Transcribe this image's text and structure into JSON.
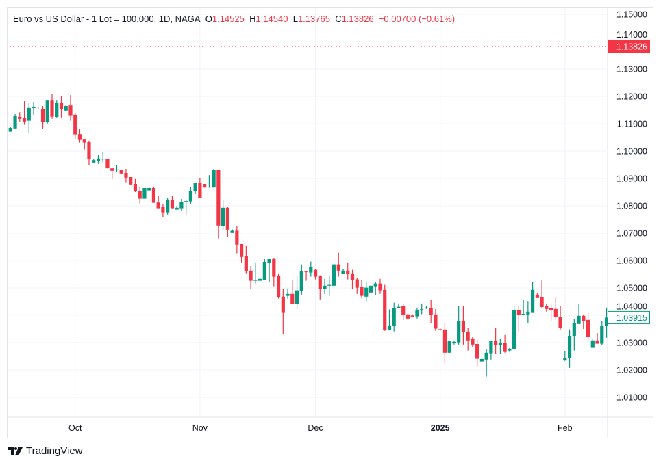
{
  "header": {
    "symbol_title": "Euro vs US Dollar - 1 Lot = 100,000, 1D, NAGA",
    "open_label": "O",
    "open": "1.14525",
    "high_label": "H",
    "high": "1.14540",
    "low_label": "L",
    "low": "1.13765",
    "close_label": "C",
    "close": "1.13826",
    "change": "−0.00700 (−0.61%)"
  },
  "price_markers": {
    "current_price": "1.13826",
    "current_price_value": 1.13826,
    "current_price_color": "#f23645",
    "last_bar_price": "1.03915",
    "last_bar_price_value": 1.03915,
    "last_bar_color": "#089981"
  },
  "brand": {
    "name": "TradingView"
  },
  "colors": {
    "up": "#089981",
    "down": "#f23645",
    "grid": "#f0f3fa",
    "text": "#131722"
  },
  "chart_data": {
    "type": "candlestick",
    "title": "Euro vs US Dollar - 1 Lot = 100,000, 1D, NAGA",
    "ylim": [
      1.0035,
      1.1525
    ],
    "grid": true,
    "y_ticks": [
      "1.15000",
      "1.14000",
      "1.13000",
      "1.12000",
      "1.11000",
      "1.10000",
      "1.09000",
      "1.08000",
      "1.07000",
      "1.06000",
      "1.05000",
      "1.04000",
      "1.03000",
      "1.02000",
      "1.01000"
    ],
    "x_ticks": [
      {
        "label": "Oct",
        "index": 14,
        "bold": false
      },
      {
        "label": "Nov",
        "index": 41,
        "bold": false
      },
      {
        "label": "Dec",
        "index": 66,
        "bold": false
      },
      {
        "label": "2025",
        "index": 93,
        "bold": true
      },
      {
        "label": "Feb",
        "index": 120,
        "bold": false
      }
    ],
    "ohlc_fields": [
      "open",
      "high",
      "low",
      "close"
    ],
    "ohlc": [
      [
        1.1071,
        1.1088,
        1.1071,
        1.1085
      ],
      [
        1.1083,
        1.1135,
        1.1083,
        1.1128
      ],
      [
        1.1125,
        1.1142,
        1.1108,
        1.1118
      ],
      [
        1.112,
        1.1185,
        1.1096,
        1.1108
      ],
      [
        1.1111,
        1.1175,
        1.1066,
        1.1158
      ],
      [
        1.1158,
        1.118,
        1.1133,
        1.116
      ],
      [
        1.1153,
        1.1163,
        1.1153,
        1.1155
      ],
      [
        1.1155,
        1.1165,
        1.108,
        1.1106
      ],
      [
        1.1105,
        1.1187,
        1.1101,
        1.1187
      ],
      [
        1.1187,
        1.121,
        1.1118,
        1.1126
      ],
      [
        1.1125,
        1.1187,
        1.1123,
        1.1175
      ],
      [
        1.1175,
        1.12,
        1.1123,
        1.1153
      ],
      [
        1.1148,
        1.117,
        1.1148,
        1.1165
      ],
      [
        1.1167,
        1.1205,
        1.1111,
        1.1131
      ],
      [
        1.1133,
        1.114,
        1.1043,
        1.1061
      ],
      [
        1.1062,
        1.108,
        1.1031,
        1.1041
      ],
      [
        1.1042,
        1.1045,
        1.1006,
        1.1031
      ],
      [
        1.1033,
        1.1038,
        1.0948,
        1.0971
      ],
      [
        1.0958,
        1.097,
        1.0958,
        1.0967
      ],
      [
        1.0965,
        1.0985,
        1.0953,
        1.0973
      ],
      [
        1.0971,
        1.0995,
        1.0958,
        1.0972
      ],
      [
        1.0972,
        1.0972,
        1.0936,
        1.0938
      ],
      [
        1.0937,
        1.0937,
        1.0898,
        1.0928
      ],
      [
        1.093,
        1.095,
        1.0923,
        1.0933
      ],
      [
        1.093,
        1.093,
        1.0918,
        1.0918
      ],
      [
        1.092,
        1.0935,
        1.0886,
        1.0903
      ],
      [
        1.0905,
        1.0905,
        1.0878,
        1.0878
      ],
      [
        1.088,
        1.0898,
        1.085,
        1.0853
      ],
      [
        1.0855,
        1.087,
        1.0808,
        1.0826
      ],
      [
        1.0826,
        1.0865,
        1.0826,
        1.0865
      ],
      [
        1.0856,
        1.0868,
        1.0856,
        1.0865
      ],
      [
        1.0865,
        1.0868,
        1.0811,
        1.0811
      ],
      [
        1.0812,
        1.0835,
        1.0791,
        1.0791
      ],
      [
        1.0795,
        1.0805,
        1.0758,
        1.0776
      ],
      [
        1.0776,
        1.0828,
        1.0768,
        1.082
      ],
      [
        1.0822,
        1.0837,
        1.0791,
        1.0791
      ],
      [
        1.0786,
        1.08,
        1.0786,
        1.0793
      ],
      [
        1.0791,
        1.0825,
        1.0781,
        1.0815
      ],
      [
        1.0816,
        1.0823,
        1.0766,
        1.0817
      ],
      [
        1.0816,
        1.0868,
        1.0806,
        1.0855
      ],
      [
        1.0853,
        1.0885,
        1.0843,
        1.0883
      ],
      [
        1.0883,
        1.0902,
        1.0828,
        1.0828
      ],
      [
        1.088,
        1.088,
        1.0867,
        1.0867
      ],
      [
        1.0867,
        1.0912,
        1.0867,
        1.087
      ],
      [
        1.0867,
        1.0935,
        1.0867,
        1.093
      ],
      [
        1.093,
        1.093,
        1.0681,
        1.0728
      ],
      [
        1.0726,
        1.0823,
        1.0711,
        1.0793
      ],
      [
        1.0793,
        1.0795,
        1.0686,
        1.0713
      ],
      [
        1.0703,
        1.0714,
        1.0703,
        1.0709
      ],
      [
        1.0709,
        1.0725,
        1.0626,
        1.0658
      ],
      [
        1.066,
        1.066,
        1.0593,
        1.0613
      ],
      [
        1.0615,
        1.0653,
        1.0553,
        1.0561
      ],
      [
        1.0563,
        1.058,
        1.0496,
        1.0526
      ],
      [
        1.0526,
        1.059,
        1.0516,
        1.053
      ],
      [
        1.0526,
        1.0536,
        1.0526,
        1.0533
      ],
      [
        1.053,
        1.0605,
        1.0528,
        1.0595
      ],
      [
        1.0591,
        1.0605,
        1.0521,
        1.0605
      ],
      [
        1.0605,
        1.0608,
        1.0506,
        1.0541
      ],
      [
        1.0543,
        1.0553,
        1.0461,
        1.0466
      ],
      [
        1.0468,
        1.0496,
        1.0331,
        1.0411
      ],
      [
        1.0471,
        1.0498,
        1.0461,
        1.0478
      ],
      [
        1.0478,
        1.0528,
        1.0441,
        1.0441
      ],
      [
        1.0441,
        1.0543,
        1.0423,
        1.0491
      ],
      [
        1.0488,
        1.0586,
        1.0473,
        1.0561
      ],
      [
        1.0561,
        1.0561,
        1.0526,
        1.0558
      ],
      [
        1.0556,
        1.0596,
        1.0541,
        1.0576
      ],
      [
        1.0566,
        1.0568,
        1.0531,
        1.0541
      ],
      [
        1.0543,
        1.0546,
        1.0458,
        1.0496
      ],
      [
        1.0496,
        1.0533,
        1.0478,
        1.0508
      ],
      [
        1.0508,
        1.0543,
        1.0471,
        1.0511
      ],
      [
        1.0508,
        1.0588,
        1.0506,
        1.0586
      ],
      [
        1.0586,
        1.0628,
        1.0541,
        1.0563
      ],
      [
        1.0551,
        1.0568,
        1.0551,
        1.0563
      ],
      [
        1.0563,
        1.0593,
        1.0531,
        1.0551
      ],
      [
        1.0553,
        1.0566,
        1.0496,
        1.0528
      ],
      [
        1.0531,
        1.0538,
        1.0478,
        1.0501
      ],
      [
        1.0503,
        1.0528,
        1.0463,
        1.0471
      ],
      [
        1.0468,
        1.0523,
        1.0451,
        1.0501
      ],
      [
        1.0483,
        1.0508,
        1.0483,
        1.0508
      ],
      [
        1.0506,
        1.0521,
        1.0473,
        1.0516
      ],
      [
        1.0516,
        1.0533,
        1.0478,
        1.0491
      ],
      [
        1.0493,
        1.0511,
        1.0343,
        1.0346
      ],
      [
        1.0346,
        1.0421,
        1.0346,
        1.0363
      ],
      [
        1.0361,
        1.0446,
        1.0341,
        1.0426
      ],
      [
        1.0426,
        1.0443,
        1.0426,
        1.0431
      ],
      [
        1.0433,
        1.0443,
        1.0383,
        1.0401
      ],
      [
        1.0403,
        1.0408,
        1.0383,
        1.0388
      ],
      [
        1.0399,
        1.0403,
        1.0393,
        1.0395
      ],
      [
        1.0396,
        1.0428,
        1.0388,
        1.042
      ],
      [
        1.042,
        1.0443,
        1.0404,
        1.0422
      ],
      [
        1.0426,
        1.0433,
        1.0423,
        1.0428
      ],
      [
        1.0427,
        1.0455,
        1.0371,
        1.0401
      ],
      [
        1.0403,
        1.0423,
        1.0343,
        1.0351
      ],
      [
        1.0349,
        1.0354,
        1.0344,
        1.0347
      ],
      [
        1.0348,
        1.0373,
        1.0223,
        1.0263
      ],
      [
        1.0263,
        1.0307,
        1.0263,
        1.0305
      ],
      [
        1.03,
        1.0306,
        1.0293,
        1.0303
      ],
      [
        1.0301,
        1.0435,
        1.0293,
        1.038
      ],
      [
        1.038,
        1.0433,
        1.0293,
        1.0338
      ],
      [
        1.034,
        1.0355,
        1.0271,
        1.0308
      ],
      [
        1.0313,
        1.032,
        1.0283,
        1.0293
      ],
      [
        1.0295,
        1.031,
        1.0211,
        1.0241
      ],
      [
        1.0231,
        1.0246,
        1.0231,
        1.024
      ],
      [
        1.0238,
        1.0276,
        1.0176,
        1.0263
      ],
      [
        1.0261,
        1.0307,
        1.0238,
        1.0305
      ],
      [
        1.0305,
        1.0353,
        1.0258,
        1.0291
      ],
      [
        1.0291,
        1.0313,
        1.0258,
        1.03
      ],
      [
        1.03,
        1.0328,
        1.0263,
        1.0266
      ],
      [
        1.0271,
        1.028,
        1.0266,
        1.0278
      ],
      [
        1.0276,
        1.0433,
        1.0276,
        1.042
      ],
      [
        1.0418,
        1.0435,
        1.034,
        1.0401
      ],
      [
        1.0403,
        1.0455,
        1.04,
        1.0405
      ],
      [
        1.0403,
        1.0452,
        1.037,
        1.0413
      ],
      [
        1.0411,
        1.052,
        1.0411,
        1.0493
      ],
      [
        1.0475,
        1.0483,
        1.0463,
        1.0463
      ],
      [
        1.0465,
        1.053,
        1.0425,
        1.043
      ],
      [
        1.0433,
        1.0443,
        1.0413,
        1.0423
      ],
      [
        1.0425,
        1.0443,
        1.038,
        1.042
      ],
      [
        1.0423,
        1.0465,
        1.0383,
        1.0393
      ],
      [
        1.0395,
        1.0433,
        1.0348,
        1.0353
      ],
      [
        1.0235,
        1.0268,
        1.0233,
        1.0245
      ],
      [
        1.0243,
        1.0348,
        1.0208,
        1.0325
      ],
      [
        1.0323,
        1.0385,
        1.0271,
        1.037
      ],
      [
        1.0368,
        1.044,
        1.0368,
        1.0398
      ],
      [
        1.0398,
        1.0403,
        1.035,
        1.038
      ],
      [
        1.0383,
        1.041,
        1.0305,
        1.032
      ],
      [
        1.0281,
        1.0313,
        1.0281,
        1.0308
      ],
      [
        1.0308,
        1.0335,
        1.0296,
        1.0296
      ],
      [
        1.0296,
        1.038,
        1.0291,
        1.036
      ],
      [
        1.0361,
        1.0428,
        1.0318,
        1.03915
      ]
    ]
  }
}
